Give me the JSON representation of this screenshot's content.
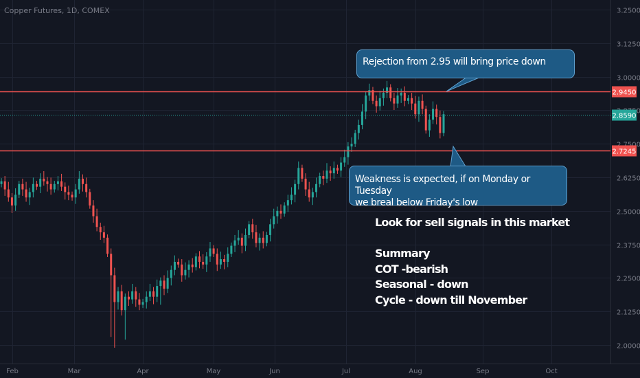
{
  "symbol_title": "Copper Futures, 1D, COMEX",
  "colors": {
    "background": "#131722",
    "up_candle": "#26a69a",
    "down_candle": "#ef5350",
    "grid": "#1f2433",
    "level_line": "#f05350",
    "last_price": "#26a69a",
    "callout_fill": "#1e5a85"
  },
  "annotations": {
    "rejection": "Rejection from 2.95 will bring price down",
    "weakness_line1": "Weakness is expected, if on Monday or Tuesday",
    "weakness_line2": "we breal below Friday's low"
  },
  "notes": {
    "line1": "Look for sell signals in this market",
    "line2": "Summary",
    "line3": "COT -bearish",
    "line4": "Seasonal - down",
    "line5": "Cycle - down till November"
  },
  "chart_data": {
    "type": "candlestick",
    "title": "Copper Futures, 1D, COMEX",
    "price_axis_ticks": [
      "3.2500",
      "3.1250",
      "3.0000",
      "2.8750",
      "2.7500",
      "2.6250",
      "2.5000",
      "2.3750",
      "2.2500",
      "2.1250",
      "2.0000"
    ],
    "price_axis_ticks_numeric": [
      3.25,
      3.125,
      3.0,
      2.875,
      2.75,
      2.625,
      2.5,
      2.375,
      2.25,
      2.125,
      2.0
    ],
    "time_axis_labels": [
      "Feb",
      "Mar",
      "Apr",
      "May",
      "Jun",
      "Jul",
      "Aug",
      "Sep",
      "Oct"
    ],
    "ylim": [
      1.975,
      3.28
    ],
    "horizontal_levels": [
      {
        "value": 2.945,
        "label": "2.9450",
        "color": "#f05350"
      },
      {
        "value": 2.7245,
        "label": "2.7245",
        "color": "#f05350"
      }
    ],
    "last_price": {
      "value": 2.859,
      "label": "2.8590"
    },
    "grid": true,
    "closes": [
      2.61,
      2.58,
      2.55,
      2.52,
      2.56,
      2.6,
      2.58,
      2.55,
      2.57,
      2.6,
      2.59,
      2.62,
      2.61,
      2.6,
      2.58,
      2.6,
      2.61,
      2.59,
      2.57,
      2.56,
      2.55,
      2.58,
      2.62,
      2.6,
      2.57,
      2.52,
      2.48,
      2.44,
      2.42,
      2.4,
      2.34,
      2.26,
      2.16,
      2.2,
      2.13,
      2.18,
      2.17,
      2.2,
      2.17,
      2.15,
      2.16,
      2.18,
      2.2,
      2.18,
      2.22,
      2.24,
      2.21,
      2.25,
      2.28,
      2.31,
      2.3,
      2.26,
      2.28,
      2.3,
      2.29,
      2.33,
      2.31,
      2.3,
      2.33,
      2.36,
      2.34,
      2.3,
      2.32,
      2.31,
      2.34,
      2.37,
      2.39,
      2.4,
      2.37,
      2.41,
      2.45,
      2.42,
      2.38,
      2.4,
      2.38,
      2.41,
      2.45,
      2.48,
      2.5,
      2.49,
      2.52,
      2.54,
      2.56,
      2.6,
      2.66,
      2.62,
      2.58,
      2.55,
      2.57,
      2.6,
      2.63,
      2.62,
      2.65,
      2.64,
      2.66,
      2.65,
      2.68,
      2.7,
      2.74,
      2.75,
      2.79,
      2.82,
      2.87,
      2.93,
      2.95,
      2.91,
      2.89,
      2.92,
      2.94,
      2.96,
      2.92,
      2.9,
      2.93,
      2.94,
      2.91,
      2.92,
      2.9,
      2.86,
      2.91,
      2.88,
      2.8,
      2.84,
      2.88,
      2.85,
      2.79,
      2.86
    ]
  }
}
